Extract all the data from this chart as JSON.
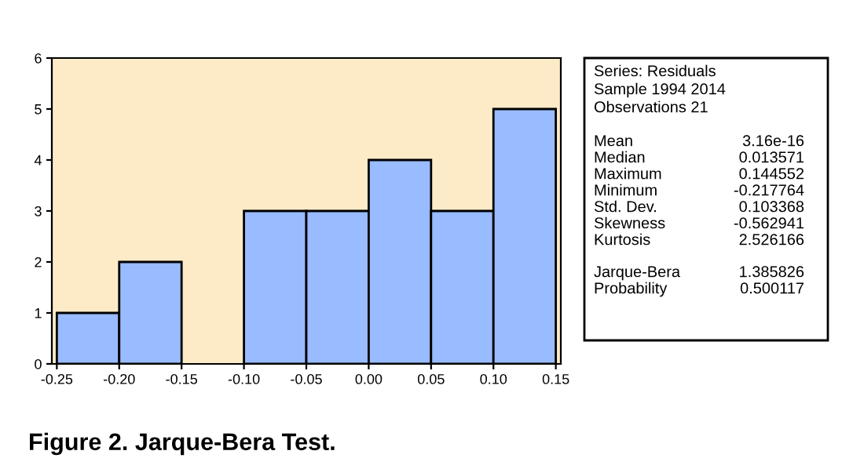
{
  "chart_data": {
    "type": "histogram",
    "title": "Figure 2. Jarque-Bera Test.",
    "bins": [
      -0.25,
      -0.2,
      -0.15,
      -0.1,
      -0.05,
      0.0,
      0.05,
      0.1,
      0.15
    ],
    "values": [
      1,
      2,
      0,
      3,
      3,
      4,
      3,
      5
    ],
    "color": "#99bbff",
    "xlim": [
      -0.254,
      0.154
    ],
    "ylim": [
      0,
      6
    ],
    "xticks": [
      {
        "value": -0.25,
        "label": "-0.25"
      },
      {
        "value": -0.2,
        "label": "-0.20"
      },
      {
        "value": -0.15,
        "label": "-0.15"
      },
      {
        "value": -0.1,
        "label": "-0.10"
      },
      {
        "value": -0.05,
        "label": "-0.05"
      },
      {
        "value": 0.0,
        "label": "0.00"
      },
      {
        "value": 0.05,
        "label": "0.05"
      },
      {
        "value": 0.1,
        "label": "0.10"
      },
      {
        "value": 0.15,
        "label": "0.15"
      }
    ],
    "yticks": [
      0,
      1,
      2,
      3,
      4,
      5,
      6
    ],
    "grid": false,
    "annotations": [
      "Series: Residuals",
      "Sample 1994 2014",
      "Observations 21",
      "Mean\t3.16e-16",
      "Median\t0.013571",
      "Maximum\t0.144552",
      "Minimum\t-0.217764",
      "Std. Dev.\t0.103368",
      "Skewness\t-0.562941",
      "Kurtosis\t2.526166",
      "Jarque-Bera\t1.385826",
      "Probability\t0.500117"
    ]
  }
}
